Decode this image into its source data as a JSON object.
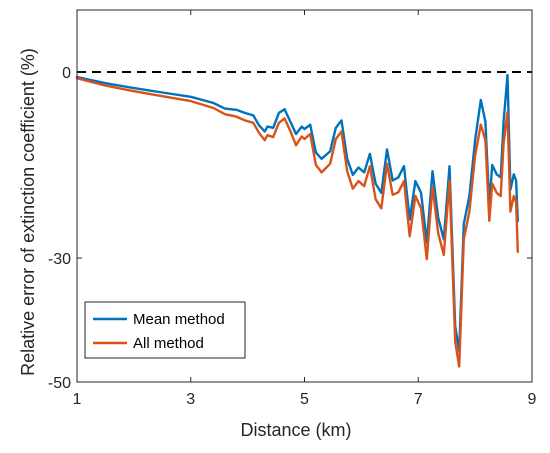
{
  "chart_data": {
    "type": "line",
    "title": "",
    "xlabel": "Distance (km)",
    "ylabel": "Relative error of extinction coefficient (%)",
    "xlim": [
      1,
      9
    ],
    "ylim": [
      -50,
      10
    ],
    "xticks": [
      1,
      3,
      5,
      7,
      9
    ],
    "yticks": [
      0,
      -30,
      -50
    ],
    "grid": false,
    "legend_position": "bottom-left",
    "reference_line": {
      "y": 0,
      "style": "dashed",
      "color": "#000000"
    },
    "series": [
      {
        "name": "Mean method",
        "color": "#0072BD",
        "x": [
          1.0,
          1.5,
          2.0,
          2.5,
          3.0,
          3.4,
          3.6,
          3.8,
          3.95,
          4.1,
          4.2,
          4.3,
          4.35,
          4.45,
          4.55,
          4.65,
          4.75,
          4.85,
          4.95,
          5.0,
          5.1,
          5.2,
          5.3,
          5.45,
          5.55,
          5.65,
          5.75,
          5.85,
          5.95,
          6.05,
          6.15,
          6.25,
          6.35,
          6.45,
          6.55,
          6.65,
          6.75,
          6.85,
          6.95,
          7.05,
          7.15,
          7.25,
          7.35,
          7.45,
          7.55,
          7.65,
          7.72,
          7.8,
          7.9,
          8.0,
          8.1,
          8.18,
          8.25,
          8.3,
          8.38,
          8.45,
          8.5,
          8.57,
          8.62,
          8.68,
          8.72,
          8.75
        ],
        "y": [
          -0.8,
          -1.8,
          -2.6,
          -3.3,
          -4.0,
          -5.0,
          -5.9,
          -6.1,
          -6.6,
          -7.0,
          -8.6,
          -9.6,
          -8.8,
          -9.0,
          -6.6,
          -6.0,
          -8.0,
          -10.0,
          -8.8,
          -9.2,
          -8.5,
          -13.0,
          -14.0,
          -12.8,
          -9.0,
          -7.8,
          -14.0,
          -16.6,
          -15.4,
          -16.2,
          -13.2,
          -18.0,
          -19.5,
          -12.5,
          -17.5,
          -17.0,
          -15.2,
          -23.8,
          -17.6,
          -19.5,
          -27.5,
          -16.0,
          -23.5,
          -27.0,
          -15.2,
          -41.0,
          -45.0,
          -24.5,
          -20.0,
          -11.0,
          -4.5,
          -8.0,
          -21.5,
          -15.0,
          -16.5,
          -17.0,
          -8.0,
          -0.5,
          -19.0,
          -16.5,
          -17.5,
          -24.0
        ]
      },
      {
        "name": "All method",
        "color": "#D95319",
        "x": [
          1.0,
          1.5,
          2.0,
          2.5,
          3.0,
          3.4,
          3.6,
          3.8,
          3.95,
          4.1,
          4.2,
          4.3,
          4.35,
          4.45,
          4.55,
          4.65,
          4.75,
          4.85,
          4.95,
          5.0,
          5.1,
          5.2,
          5.3,
          5.45,
          5.55,
          5.65,
          5.75,
          5.85,
          5.95,
          6.05,
          6.15,
          6.25,
          6.35,
          6.45,
          6.55,
          6.65,
          6.75,
          6.85,
          6.95,
          7.05,
          7.15,
          7.25,
          7.35,
          7.45,
          7.55,
          7.65,
          7.72,
          7.8,
          7.9,
          8.0,
          8.1,
          8.18,
          8.25,
          8.3,
          8.38,
          8.45,
          8.5,
          8.57,
          8.62,
          8.68,
          8.72,
          8.75
        ],
        "y": [
          -1.0,
          -2.2,
          -3.1,
          -3.9,
          -4.7,
          -5.8,
          -6.8,
          -7.2,
          -7.8,
          -8.2,
          -9.8,
          -11.0,
          -10.2,
          -10.5,
          -8.2,
          -7.5,
          -9.5,
          -11.8,
          -10.4,
          -10.8,
          -10.0,
          -15.0,
          -16.2,
          -14.8,
          -10.8,
          -9.6,
          -16.0,
          -18.8,
          -17.6,
          -18.4,
          -15.2,
          -20.5,
          -22.0,
          -14.8,
          -19.8,
          -19.4,
          -17.6,
          -26.5,
          -20.0,
          -22.0,
          -30.2,
          -18.5,
          -26.0,
          -29.5,
          -17.5,
          -43.5,
          -47.5,
          -27.0,
          -22.5,
          -13.5,
          -8.5,
          -11.0,
          -24.0,
          -18.0,
          -19.5,
          -20.0,
          -11.5,
          -6.5,
          -22.5,
          -20.0,
          -21.0,
          -29.0
        ]
      }
    ]
  }
}
